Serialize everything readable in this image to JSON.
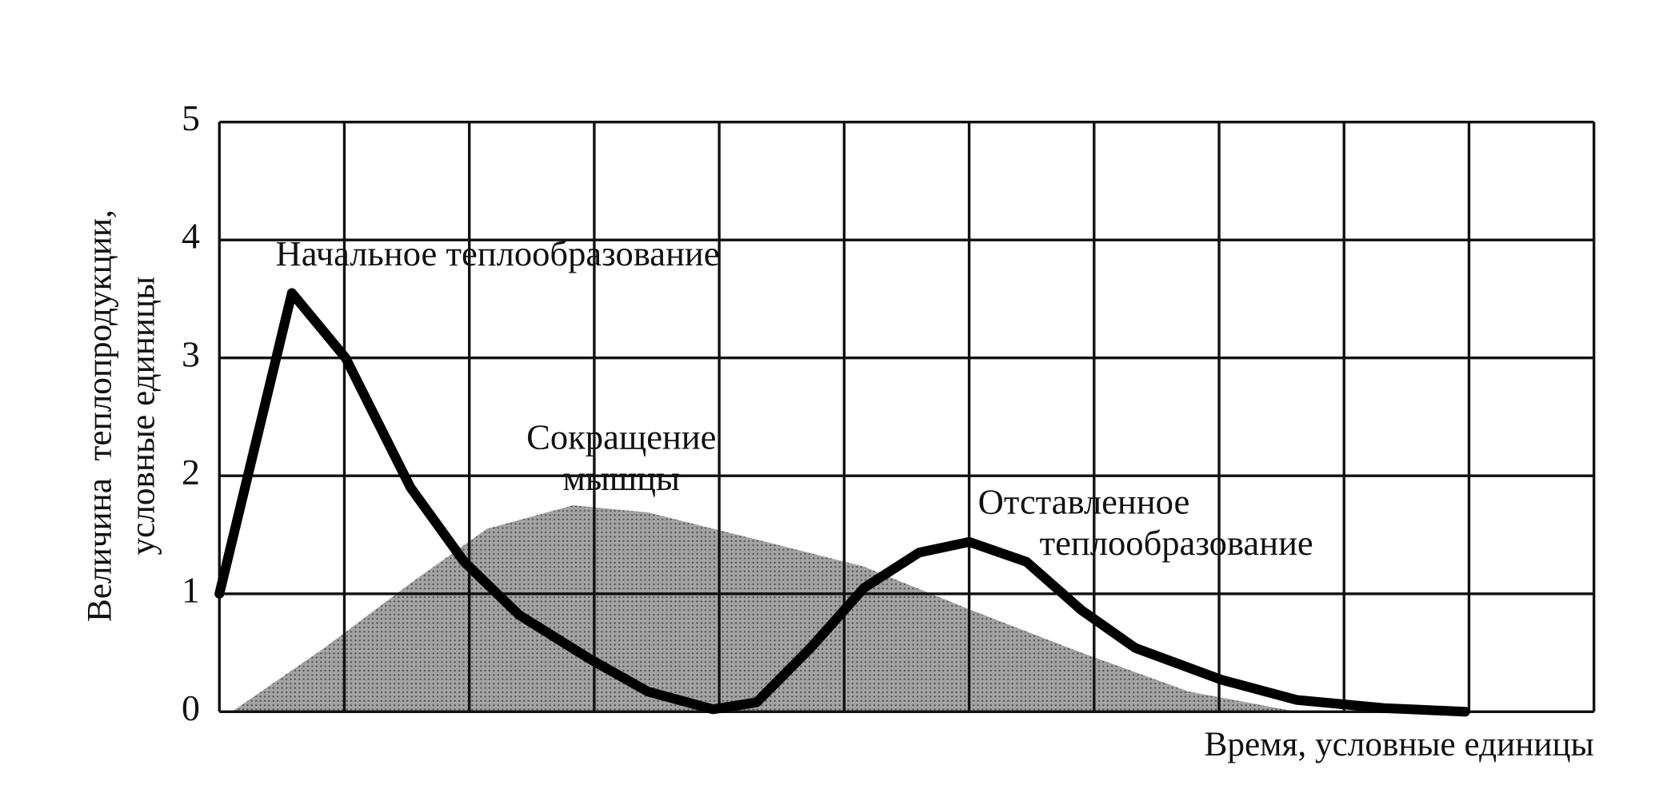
{
  "chart_data": {
    "type": "line",
    "ylabel": [
      "Величина  теплопродукции,",
      "условные единицы"
    ],
    "xlabel": "Время, условные единицы",
    "xlim": [
      0,
      11
    ],
    "xticks": [
      0,
      1,
      2,
      3,
      4,
      5,
      6,
      7,
      8,
      9,
      10,
      11
    ],
    "show_xtick_labels": false,
    "ylim": [
      0,
      5
    ],
    "yticks": [
      0,
      1,
      2,
      3,
      4,
      5
    ],
    "grid": true,
    "series": [
      {
        "style": "area",
        "color": "#a3a3a3",
        "x": [
          0.1,
          0.84,
          1.53,
          2.14,
          2.83,
          3.43,
          4.3,
          5.16,
          6.02,
          6.9,
          7.76,
          8.62
        ],
        "values": [
          0,
          0.54,
          1.09,
          1.55,
          1.75,
          1.69,
          1.46,
          1.23,
          0.86,
          0.5,
          0.17,
          0
        ]
      },
      {
        "style": "line",
        "color": "#000000",
        "x": [
          0,
          0.58,
          1.01,
          1.53,
          1.96,
          2.4,
          2.96,
          3.43,
          3.95,
          4.3,
          4.73,
          5.16,
          5.6,
          6.0,
          6.46,
          6.9,
          7.33,
          8.02,
          8.62,
          9.32,
          9.97
        ],
        "values": [
          1.0,
          3.55,
          3.0,
          1.9,
          1.27,
          0.82,
          0.45,
          0.17,
          0.02,
          0.08,
          0.54,
          1.05,
          1.35,
          1.44,
          1.27,
          0.86,
          0.54,
          0.27,
          0.1,
          0.03,
          0.0
        ]
      }
    ],
    "annotations": [
      {
        "text": [
          "Начальное теплообразование"
        ]
      },
      {
        "text": [
          "Сокращение",
          "мышцы"
        ]
      },
      {
        "text": [
          "Отставленное",
          "теплообразование"
        ]
      }
    ]
  }
}
